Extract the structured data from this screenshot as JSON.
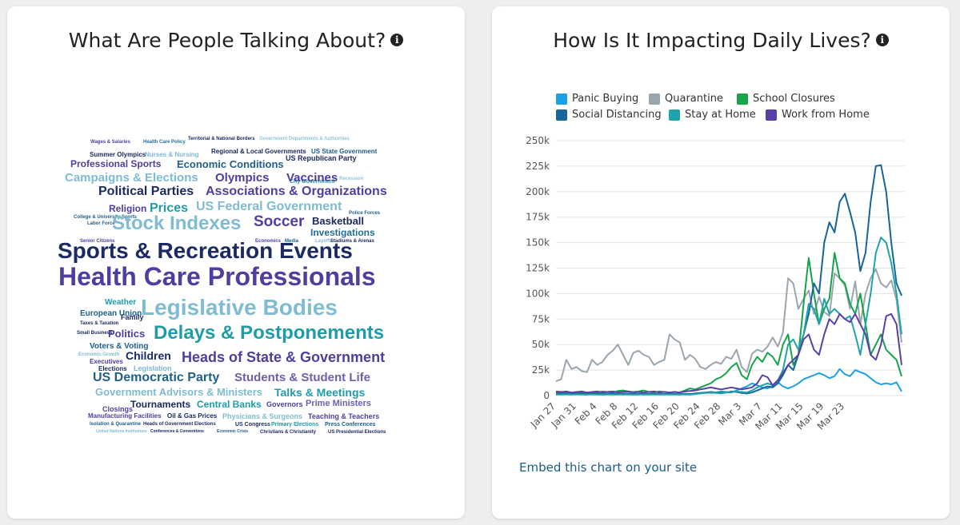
{
  "left_card": {
    "title": "What Are People Talking About?",
    "words": [
      {
        "text": "Wages & Salaries",
        "color": "#4b3f9f"
      },
      {
        "text": "Health Care Policy",
        "color": "#1f6f96"
      },
      {
        "text": "Territorial & National Borders",
        "color": "#1b2a62"
      },
      {
        "text": "Government Departments & Authorities",
        "color": "#8dc6d8"
      },
      {
        "text": "Summer Olympics",
        "color": "#1b2a62"
      },
      {
        "text": "Nurses & Nursing",
        "color": "#7fb6d6"
      },
      {
        "text": "Regional & Local Governments",
        "color": "#1b2a62"
      },
      {
        "text": "US State Government",
        "color": "#1b5e8d"
      },
      {
        "text": "Professional Sports",
        "color": "#4b3f9f"
      },
      {
        "text": "Economic Conditions",
        "color": "#1f5f8b"
      },
      {
        "text": "US Republican Party",
        "color": "#1b2a62"
      },
      {
        "text": "Campaigns & Elections",
        "color": "#7fbcd2"
      },
      {
        "text": "Olympics",
        "color": "#4b3f9f"
      },
      {
        "text": "City Government",
        "color": "#1f9ca8"
      },
      {
        "text": "Vaccines",
        "color": "#4b3f9f"
      },
      {
        "text": "Recession",
        "color": "#8dc6d8"
      },
      {
        "text": "Political Parties",
        "color": "#1b2a62"
      },
      {
        "text": "Associations & Organizations",
        "color": "#4b3f9f"
      },
      {
        "text": "Religion",
        "color": "#4b3f9f"
      },
      {
        "text": "Prices",
        "color": "#1f9ca8"
      },
      {
        "text": "US Federal Government",
        "color": "#7fbcd2"
      },
      {
        "text": "College & University Sports",
        "color": "#1b5e8d"
      },
      {
        "text": "Police Forces",
        "color": "#1b5e8d"
      },
      {
        "text": "Labor Force",
        "color": "#1b5e8d"
      },
      {
        "text": "Stock Indexes",
        "color": "#7fbcd2"
      },
      {
        "text": "Soccer",
        "color": "#4b3f9f"
      },
      {
        "text": "Basketball",
        "color": "#1b2a62"
      },
      {
        "text": "Investigations",
        "color": "#1f6f96"
      },
      {
        "text": "Senior Citizens",
        "color": "#4b3f9f"
      },
      {
        "text": "Economics",
        "color": "#4b3f9f"
      },
      {
        "text": "Media",
        "color": "#1b5e8d"
      },
      {
        "text": "Layoffs",
        "color": "#7fb6d6"
      },
      {
        "text": "Stadiums & Arenas",
        "color": "#1b2a62"
      },
      {
        "text": "Sports & Recreation Events",
        "color": "#1b2a62"
      },
      {
        "text": "Health Care Professionals",
        "color": "#4b3f9f"
      },
      {
        "text": "Weather",
        "color": "#1f9ca8"
      },
      {
        "text": "Legislative Bodies",
        "color": "#7fbcd2"
      },
      {
        "text": "European Union",
        "color": "#1b5e8d"
      },
      {
        "text": "Family",
        "color": "#1b2a62"
      },
      {
        "text": "Taxes & Taxation",
        "color": "#1b2a62"
      },
      {
        "text": "Small Business",
        "color": "#1b2a62"
      },
      {
        "text": "Politics",
        "color": "#4b3f9f"
      },
      {
        "text": "Delays & Postponements",
        "color": "#1f9ca8"
      },
      {
        "text": "Voters & Voting",
        "color": "#1b5e8d"
      },
      {
        "text": "Economic Growth",
        "color": "#7fbcd2"
      },
      {
        "text": "Children",
        "color": "#1b2a62"
      },
      {
        "text": "Executives",
        "color": "#4b3f9f"
      },
      {
        "text": "Heads of State & Government",
        "color": "#4b3f9f"
      },
      {
        "text": "Elections",
        "color": "#1b2a62"
      },
      {
        "text": "Legislation",
        "color": "#7fb6d6"
      },
      {
        "text": "US Democratic Party",
        "color": "#1f5f8b"
      },
      {
        "text": "Students & Student Life",
        "color": "#6b61b0"
      },
      {
        "text": "Government Advisors & Ministers",
        "color": "#7fbcd2"
      },
      {
        "text": "Talks & Meetings",
        "color": "#1f9ca8"
      },
      {
        "text": "Tournaments",
        "color": "#1b2a62"
      },
      {
        "text": "Central Banks",
        "color": "#1f9ca8"
      },
      {
        "text": "Governors",
        "color": "#4b3f9f"
      },
      {
        "text": "Prime Ministers",
        "color": "#6b61b0"
      },
      {
        "text": "Closings",
        "color": "#4b3f9f"
      },
      {
        "text": "Manufacturing Facilities",
        "color": "#4b3f9f"
      },
      {
        "text": "Oil & Gas Prices",
        "color": "#1b2a62"
      },
      {
        "text": "Physicians & Surgeons",
        "color": "#7fbcd2"
      },
      {
        "text": "Teaching & Teachers",
        "color": "#4b3f9f"
      },
      {
        "text": "Isolation & Quarantine",
        "color": "#1b5e8d"
      },
      {
        "text": "Heads of Government Elections",
        "color": "#1b2a62"
      },
      {
        "text": "US Congress",
        "color": "#1b2a62"
      },
      {
        "text": "Primary Elections",
        "color": "#1f9ca8"
      },
      {
        "text": "Press Conferences",
        "color": "#1b5e8d"
      },
      {
        "text": "United Nations Institutions",
        "color": "#7fbcd2"
      },
      {
        "text": "Conferences & Conventions",
        "color": "#1b2a62"
      },
      {
        "text": "Economic Crisis",
        "color": "#1b5e8d"
      },
      {
        "text": "Christians & Christianity",
        "color": "#1b2a62"
      },
      {
        "text": "US Presidential Elections",
        "color": "#1b2a62"
      }
    ]
  },
  "right_card": {
    "title": "How Is It Impacting Daily Lives?",
    "embed_link": "Embed this chart on your site"
  },
  "chart_data": {
    "type": "line",
    "title": "How Is It Impacting Daily Lives?",
    "x_ticks": [
      "Jan 27",
      "Jan 31",
      "Feb 4",
      "Feb 8",
      "Feb 12",
      "Feb 16",
      "Feb 20",
      "Feb 24",
      "Feb 28",
      "Mar 3",
      "Mar 7",
      "Mar 11",
      "Mar 15",
      "Mar 19",
      "Mar 23"
    ],
    "y_ticks": [
      "0",
      "25k",
      "50k",
      "75k",
      "100k",
      "125k",
      "150k",
      "175k",
      "200k",
      "225k",
      "250k"
    ],
    "ylim": [
      0,
      250000
    ],
    "legend_position": "top",
    "grid": true,
    "x_start": "Jan 27",
    "series": [
      {
        "name": "Panic Buying",
        "color": "#1aa0e6",
        "values": [
          1000,
          1500,
          1500,
          1000,
          1500,
          1500,
          1000,
          1500,
          1500,
          1000,
          1000,
          1500,
          1500,
          1000,
          1500,
          1000,
          1000,
          1500,
          1500,
          1000,
          1500,
          1500,
          1000,
          1500,
          1000,
          1500,
          1500,
          2000,
          2500,
          3000,
          2500,
          3000,
          4000,
          3500,
          3000,
          5000,
          7000,
          9000,
          12000,
          10000,
          8000,
          7000,
          9000,
          13000,
          9000,
          7000,
          9000,
          12000,
          16000,
          18000,
          20000,
          22000,
          20000,
          17000,
          19000,
          26000,
          21000,
          19000,
          25000,
          23000,
          21000,
          17000,
          13000,
          11000,
          12000,
          11000,
          13000,
          4000
        ]
      },
      {
        "name": "Quarantine",
        "color": "#9aa6ae",
        "values": [
          14000,
          16000,
          35000,
          26000,
          28000,
          24000,
          23000,
          35000,
          30000,
          33000,
          40000,
          44000,
          50000,
          40000,
          30000,
          42000,
          44000,
          40000,
          38000,
          30000,
          33000,
          35000,
          60000,
          55000,
          52000,
          35000,
          40000,
          36000,
          28000,
          26000,
          30000,
          33000,
          31000,
          38000,
          36000,
          45000,
          28000,
          23000,
          41000,
          45000,
          43000,
          48000,
          57000,
          48000,
          62000,
          115000,
          110000,
          85000,
          95000,
          103000,
          80000,
          97000,
          82000,
          78000,
          120000,
          115000,
          108000,
          85000,
          112000,
          70000,
          100000,
          115000,
          124000,
          110000,
          106000,
          113000,
          94000,
          52000
        ]
      },
      {
        "name": "School Closures",
        "color": "#16a34a",
        "values": [
          3000,
          2500,
          3000,
          2000,
          3000,
          2500,
          2000,
          3000,
          3000,
          4000,
          3500,
          3000,
          4500,
          5000,
          4000,
          3500,
          4000,
          5000,
          3500,
          3000,
          4000,
          3500,
          3000,
          3500,
          3000,
          5000,
          7000,
          6000,
          8000,
          10000,
          12000,
          16000,
          18000,
          22000,
          28000,
          32000,
          20000,
          16000,
          30000,
          38000,
          33000,
          42000,
          38000,
          30000,
          50000,
          60000,
          30000,
          40000,
          90000,
          135000,
          100000,
          70000,
          85000,
          95000,
          140000,
          115000,
          110000,
          90000,
          80000,
          100000,
          70000,
          40000,
          50000,
          60000,
          45000,
          40000,
          35000,
          19000
        ]
      },
      {
        "name": "Social Distancing",
        "color": "#17659a",
        "values": [
          2000,
          1800,
          2000,
          1500,
          1800,
          2000,
          1500,
          1800,
          2000,
          1500,
          1800,
          2000,
          1500,
          1800,
          2000,
          1500,
          1800,
          1500,
          1500,
          1800,
          1500,
          1500,
          1800,
          1500,
          1500,
          1800,
          1500,
          2000,
          2500,
          3000,
          3500,
          3000,
          2500,
          3000,
          4000,
          3500,
          2500,
          2000,
          3000,
          5000,
          7000,
          9000,
          8000,
          12000,
          20000,
          30000,
          25000,
          40000,
          60000,
          80000,
          110000,
          100000,
          150000,
          170000,
          160000,
          190000,
          198000,
          180000,
          160000,
          122000,
          140000,
          190000,
          225000,
          226000,
          200000,
          150000,
          110000,
          98000
        ]
      },
      {
        "name": "Stay at Home",
        "color": "#1fa3aa",
        "values": [
          1000,
          1000,
          1200,
          1000,
          1200,
          1000,
          1000,
          1200,
          1000,
          1000,
          1200,
          1000,
          1000,
          1200,
          1000,
          1000,
          1200,
          1000,
          1000,
          1200,
          1000,
          1000,
          1200,
          1000,
          1000,
          1200,
          1000,
          1500,
          2000,
          2500,
          3000,
          2500,
          2000,
          3000,
          3500,
          4000,
          3500,
          3000,
          5000,
          8000,
          10000,
          12000,
          10000,
          15000,
          25000,
          50000,
          55000,
          45000,
          60000,
          90000,
          85000,
          70000,
          95000,
          80000,
          85000,
          80000,
          75000,
          78000,
          60000,
          40000,
          70000,
          100000,
          140000,
          155000,
          150000,
          130000,
          100000,
          60000
        ]
      },
      {
        "name": "Work from Home",
        "color": "#5b3fa8",
        "values": [
          4000,
          3500,
          4000,
          3000,
          3500,
          4000,
          3000,
          3500,
          4000,
          3000,
          3500,
          4000,
          3000,
          3500,
          4000,
          3000,
          3500,
          3000,
          3500,
          4000,
          3000,
          3500,
          3000,
          3500,
          3000,
          4000,
          4500,
          5000,
          6000,
          7000,
          8000,
          7000,
          6000,
          7000,
          8000,
          7000,
          6000,
          7000,
          8000,
          12000,
          20000,
          18000,
          10000,
          15000,
          22000,
          30000,
          35000,
          40000,
          55000,
          60000,
          45000,
          40000,
          60000,
          75000,
          70000,
          80000,
          75000,
          72000,
          80000,
          70000,
          60000,
          40000,
          35000,
          50000,
          78000,
          80000,
          70000,
          30000
        ]
      }
    ]
  }
}
